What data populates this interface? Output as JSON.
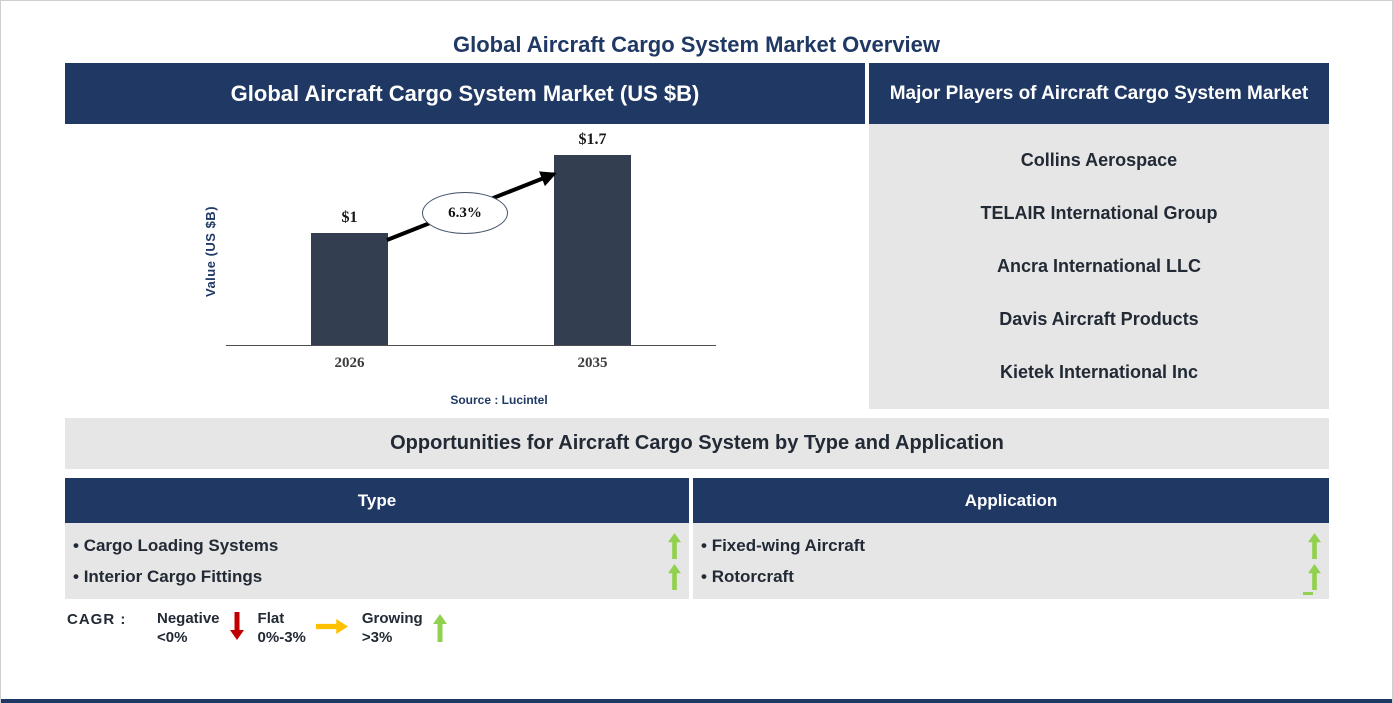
{
  "page_title": "Global Aircraft Cargo System Market Overview",
  "chart_panel": {
    "header": "Global Aircraft Cargo System Market (US $B)",
    "source": "Source : Lucintel"
  },
  "chart_data": {
    "type": "bar",
    "title": "Global Aircraft Cargo System Market (US $B)",
    "categories": [
      "2026",
      "2035"
    ],
    "values": [
      1,
      1.7
    ],
    "value_labels": [
      "$1",
      "$1.7"
    ],
    "ylabel": "Value (US $B)",
    "ylim": [
      0,
      1.8
    ],
    "grid": false,
    "cagr": "6.3%",
    "bar_color": "#333F50",
    "source": "Source : Lucintel"
  },
  "players_panel": {
    "header": "Major Players of Aircraft Cargo System Market",
    "players": [
      "Collins Aerospace",
      "TELAIR International Group",
      "Ancra International LLC",
      "Davis Aircraft Products",
      "Kietek International Inc"
    ]
  },
  "opportunities": {
    "title": "Opportunities for Aircraft Cargo System by Type and Application",
    "bullet": "•",
    "columns": [
      {
        "header": "Type",
        "items": [
          {
            "label": "Cargo Loading Systems",
            "trend": "growing"
          },
          {
            "label": "Interior Cargo Fittings",
            "trend": "growing"
          }
        ]
      },
      {
        "header": "Application",
        "items": [
          {
            "label": "Fixed-wing Aircraft",
            "trend": "growing"
          },
          {
            "label": "Rotorcraft",
            "trend": "growing"
          }
        ]
      }
    ]
  },
  "legend": {
    "label": "CAGR :",
    "entries": [
      {
        "name": "Negative",
        "range": "<0%",
        "direction": "down",
        "color_key": "red"
      },
      {
        "name": "Flat",
        "range": "0%-3%",
        "direction": "right",
        "color_key": "amber"
      },
      {
        "name": "Growing",
        "range": ">3%",
        "direction": "up",
        "color_key": "green"
      }
    ]
  },
  "colors": {
    "navy": "#1F3864",
    "bar": "#333F50",
    "panel_gray": "#E7E6E6",
    "dark": "#222A35",
    "green": "#92D050",
    "red": "#C00000",
    "amber": "#FFC000",
    "ellipse_border": "#44546A"
  }
}
